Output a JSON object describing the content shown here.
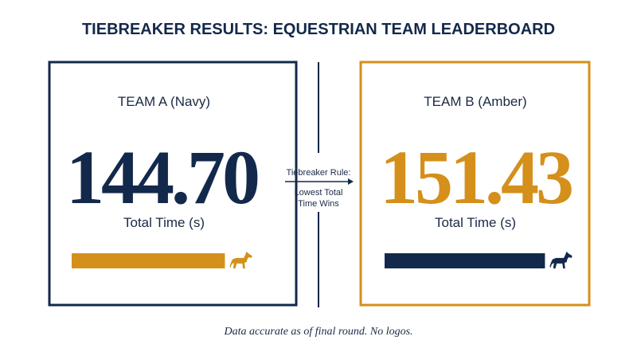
{
  "title": "TIEBREAKER RESULTS: EQUESTRIAN TEAM LEADERBOARD",
  "teams": [
    {
      "name": "TEAM A (Navy)",
      "time": "144.70",
      "label": "Total Time (s)"
    },
    {
      "name": "TEAM B (Amber)",
      "time": "151.43",
      "label": "Total Time (s)"
    }
  ],
  "rule": {
    "heading": "Tiebreaker Rule:",
    "line1": "Lowest Total",
    "line2": "Time Wins"
  },
  "footer": "Data accurate as of final round. No logos."
}
